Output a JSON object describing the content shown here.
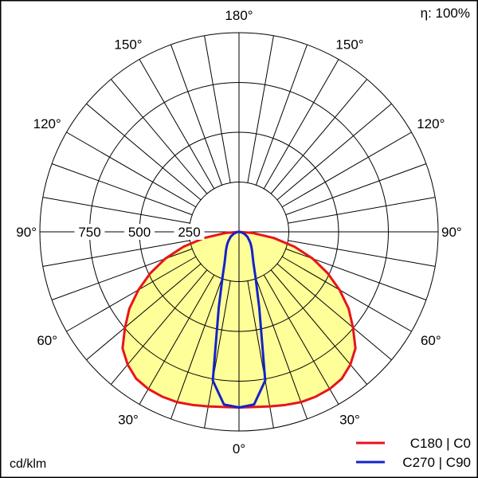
{
  "chart_data": {
    "type": "polar",
    "efficiency_label": "η: 100%",
    "unit_label": "cd/klm",
    "radial_ticks": [
      250,
      500,
      750
    ],
    "radial_max": 1000,
    "angle_labels": [
      {
        "side": "right",
        "angle": 0,
        "text": "0°"
      },
      {
        "side": "left",
        "angle": 30,
        "text": "30°"
      },
      {
        "side": "right",
        "angle": 30,
        "text": "30°"
      },
      {
        "side": "left",
        "angle": 60,
        "text": "60°"
      },
      {
        "side": "right",
        "angle": 60,
        "text": "60°"
      },
      {
        "side": "left",
        "angle": 90,
        "text": "90°"
      },
      {
        "side": "right",
        "angle": 90,
        "text": "90°"
      },
      {
        "side": "left",
        "angle": 120,
        "text": "120°"
      },
      {
        "side": "right",
        "angle": 120,
        "text": "120°"
      },
      {
        "side": "left",
        "angle": 150,
        "text": "150°"
      },
      {
        "side": "right",
        "angle": 150,
        "text": "150°"
      },
      {
        "side": "right",
        "angle": 180,
        "text": "180°"
      }
    ],
    "series": [
      {
        "name": "C180 | C0",
        "color": "#e8141b",
        "fill": "#ffff99",
        "angles": [
          0,
          5,
          10,
          15,
          20,
          25,
          30,
          35,
          40,
          45,
          50,
          55,
          60,
          65,
          70,
          75,
          80,
          85,
          90
        ],
        "values": [
          882,
          883,
          890,
          900,
          910,
          913,
          911,
          900,
          870,
          827,
          747,
          672,
          583,
          491,
          394,
          289,
          177,
          70,
          0
        ]
      },
      {
        "name": "C270 | C90",
        "color": "#1423c8",
        "fill": "none",
        "angles": [
          0,
          5,
          10,
          15,
          20,
          25,
          30,
          35,
          40,
          45,
          50,
          60,
          70,
          80,
          90
        ],
        "values": [
          882,
          870,
          758,
          392,
          242,
          171,
          136,
          114,
          96,
          82,
          68,
          48,
          28,
          10,
          0
        ]
      }
    ]
  }
}
